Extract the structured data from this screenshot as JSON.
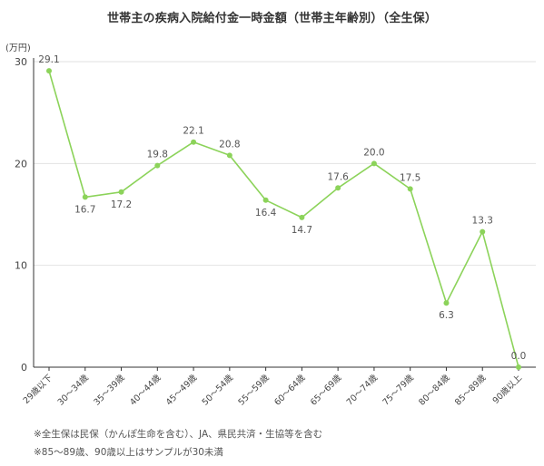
{
  "chart_data": {
    "type": "line",
    "title": "世帯主の疾病入院給付金一時金額（世帯主年齢別）（全生保）",
    "unit": "(万円)",
    "categories": [
      "29歳以下",
      "30〜34歳",
      "35〜39歳",
      "40〜44歳",
      "45〜49歳",
      "50〜54歳",
      "55〜59歳",
      "60〜64歳",
      "65〜69歳",
      "70〜74歳",
      "75〜79歳",
      "80〜84歳",
      "85〜89歳",
      "90歳以上"
    ],
    "values": [
      29.1,
      16.7,
      17.2,
      19.8,
      22.1,
      20.8,
      16.4,
      14.7,
      17.6,
      20.0,
      17.5,
      6.3,
      13.3,
      0.0
    ],
    "value_labels": [
      "29.1",
      "16.7",
      "17.2",
      "19.8",
      "22.1",
      "20.8",
      "16.4",
      "14.7",
      "17.6",
      "20.0",
      "17.5",
      "6.3",
      "13.3",
      "0.0"
    ],
    "label_above": [
      true,
      false,
      false,
      true,
      true,
      true,
      false,
      false,
      true,
      true,
      true,
      false,
      true,
      true
    ],
    "y_ticks": [
      0,
      10,
      20,
      30
    ],
    "y_tick_labels": [
      "0",
      "10",
      "20",
      "30"
    ],
    "ylim": [
      0,
      30
    ],
    "grid": true,
    "line_color": "#8cd35a",
    "axis_color": "#333333"
  },
  "notes": [
    "※全生保は民保（かんぽ生命を含む）、JA、県民共済・生協等を含む",
    "※85〜89歳、90歳以上はサンプルが30未満"
  ]
}
